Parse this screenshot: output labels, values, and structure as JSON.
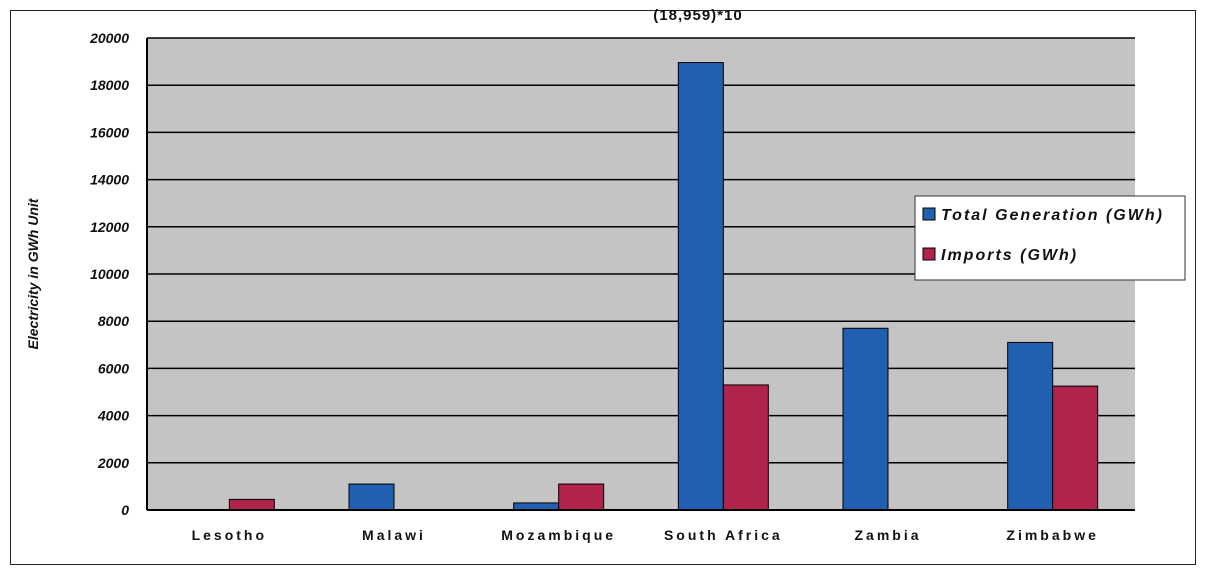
{
  "chart_data": {
    "type": "bar",
    "ylabel": "Electricity in GWh Unit",
    "ylim": [
      0,
      20000
    ],
    "yticks": [
      "0",
      "2000",
      "4000",
      "6000",
      "8000",
      "10000",
      "12000",
      "14000",
      "16000",
      "18000",
      "20000"
    ],
    "categories": [
      "Lesotho",
      "Malawi",
      "Mozambique",
      "South Africa",
      "Zambia",
      "Zimbabwe"
    ],
    "series": [
      {
        "name": "Total Generation (GWh)",
        "color": "#2160b0",
        "values": [
          0,
          1100,
          300,
          18959,
          7700,
          7100
        ]
      },
      {
        "name": "Imports (GWh)",
        "color": "#b0234a",
        "values": [
          450,
          0,
          1100,
          5300,
          0,
          5250
        ]
      }
    ],
    "annotations": [
      {
        "text": "(18,959)*10"
      }
    ],
    "grid": true,
    "legend": "right",
    "plot_bg": "#c4c4c4"
  }
}
